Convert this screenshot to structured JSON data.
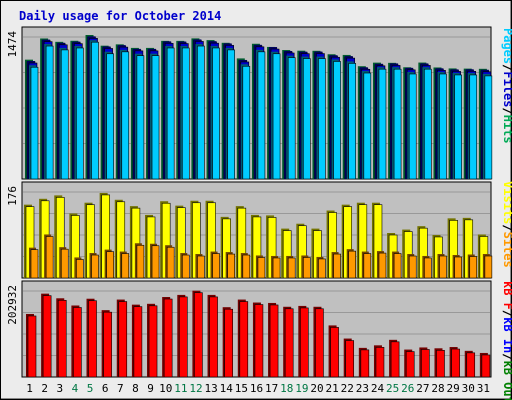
{
  "chart_data": [
    {
      "type": "bar",
      "title": "Daily usage for October 2014",
      "categories": [
        "1",
        "2",
        "3",
        "4",
        "5",
        "6",
        "7",
        "8",
        "9",
        "10",
        "11",
        "12",
        "13",
        "14",
        "15",
        "16",
        "17",
        "18",
        "19",
        "20",
        "21",
        "22",
        "23",
        "24",
        "25",
        "26",
        "27",
        "28",
        "29",
        "30",
        "31"
      ],
      "weekend_days": [
        "4",
        "5",
        "11",
        "12",
        "18",
        "19",
        "25",
        "26"
      ],
      "ylabel_max": "1474",
      "ymax": 1474,
      "legend": [
        "Pages",
        "/",
        "Files",
        "/",
        "Hits"
      ],
      "series": [
        {
          "name": "Hits",
          "values": [
            1218,
            1438,
            1403,
            1414,
            1474,
            1363,
            1377,
            1340,
            1340,
            1413,
            1413,
            1439,
            1421,
            1393,
            1231,
            1383,
            1350,
            1318,
            1311,
            1310,
            1274,
            1267,
            1150,
            1187,
            1185,
            1139,
            1188,
            1137,
            1127,
            1125,
            1123
          ]
        },
        {
          "name": "Files",
          "values": [
            1204,
            1426,
            1393,
            1405,
            1460,
            1355,
            1369,
            1330,
            1330,
            1408,
            1406,
            1428,
            1410,
            1387,
            1215,
            1372,
            1349,
            1308,
            1301,
            1302,
            1264,
            1255,
            1139,
            1175,
            1179,
            1133,
            1179,
            1128,
            1117,
            1118,
            1113
          ]
        },
        {
          "name": "Pages",
          "values": [
            1160,
            1380,
            1340,
            1360,
            1420,
            1300,
            1320,
            1280,
            1280,
            1360,
            1360,
            1380,
            1360,
            1340,
            1170,
            1320,
            1300,
            1260,
            1250,
            1250,
            1220,
            1200,
            1100,
            1140,
            1140,
            1090,
            1140,
            1090,
            1080,
            1080,
            1070
          ]
        }
      ],
      "colors": {
        "Hits": "#00cc66",
        "Files": "#0000cc",
        "Pages": "#00ccff"
      }
    },
    {
      "type": "bar",
      "categories": [
        "1",
        "2",
        "3",
        "4",
        "5",
        "6",
        "7",
        "8",
        "9",
        "10",
        "11",
        "12",
        "13",
        "14",
        "15",
        "16",
        "17",
        "18",
        "19",
        "20",
        "21",
        "22",
        "23",
        "24",
        "25",
        "26",
        "27",
        "28",
        "29",
        "30",
        "31"
      ],
      "ylabel_max": "176",
      "ymax": 176,
      "legend": [
        "Visits",
        "/",
        "Sites"
      ],
      "series": [
        {
          "name": "Visits",
          "values": [
            146,
            158,
            165,
            128,
            150,
            170,
            156,
            143,
            125,
            153,
            144,
            154,
            154,
            121,
            143,
            125,
            124,
            97,
            107,
            97,
            134,
            146,
            150,
            150,
            88,
            95,
            102,
            84,
            118,
            119,
            85
          ]
        },
        {
          "name": "Sites",
          "values": [
            58,
            85,
            59,
            38,
            47,
            54,
            50,
            67,
            66,
            63,
            47,
            45,
            50,
            49,
            47,
            42,
            41,
            41,
            42,
            39,
            49,
            55,
            50,
            51,
            50,
            45,
            41,
            45,
            43,
            44,
            45
          ]
        }
      ],
      "colors": {
        "Visits": "#ffff00",
        "Sites": "#ff9900"
      }
    },
    {
      "type": "bar",
      "categories": [
        "1",
        "2",
        "3",
        "4",
        "5",
        "6",
        "7",
        "8",
        "9",
        "10",
        "11",
        "12",
        "13",
        "14",
        "15",
        "16",
        "17",
        "18",
        "19",
        "20",
        "21",
        "22",
        "23",
        "24",
        "25",
        "26",
        "27",
        "28",
        "29",
        "30",
        "31"
      ],
      "ylabel_max": "202932",
      "ymax": 202932,
      "legend": [
        "kB F",
        "/",
        "kB In",
        "/",
        "kB Out"
      ],
      "series": [
        {
          "name": "kB F",
          "values": [
            144000,
            192000,
            181000,
            164000,
            180000,
            153000,
            178000,
            166000,
            168000,
            184000,
            189000,
            199000,
            189000,
            160000,
            178000,
            171000,
            170000,
            161000,
            163000,
            161000,
            117000,
            86000,
            64000,
            70000,
            83000,
            60000,
            65000,
            63000,
            66000,
            57000,
            52000
          ]
        }
      ],
      "colors": {
        "kB F": "#ff0000",
        "kB In": "#0000ff",
        "kB Out": "#008000"
      }
    }
  ]
}
